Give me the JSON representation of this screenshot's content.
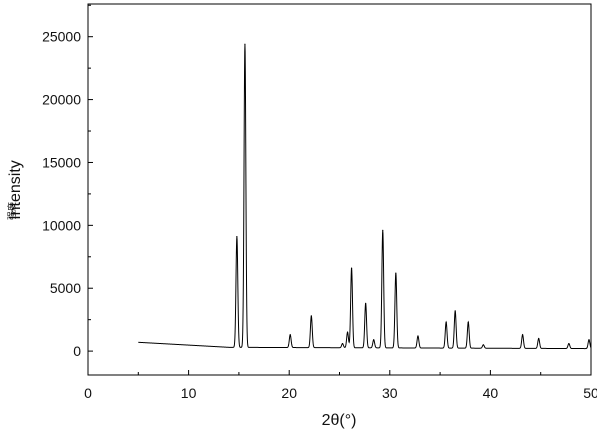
{
  "chart_data": {
    "type": "line",
    "title": "",
    "xlabel": "2θ(°)",
    "ylabel": "Intensity",
    "ylabel_secondary": "强度",
    "xlim": [
      0,
      50
    ],
    "ylim": [
      -1900,
      27600
    ],
    "x_ticks": [
      0,
      10,
      20,
      30,
      40,
      50
    ],
    "y_ticks": [
      0,
      5000,
      10000,
      15000,
      20000,
      25000
    ],
    "grid": false,
    "legend": "none",
    "baseline": {
      "start_x": 5,
      "start_y": 700,
      "decay_to_x": 14,
      "decay_to_y": 300,
      "end_y": 200
    },
    "peaks": [
      {
        "x": 14.8,
        "y": 9100
      },
      {
        "x": 15.6,
        "y": 24400
      },
      {
        "x": 20.1,
        "y": 1300
      },
      {
        "x": 22.2,
        "y": 2800
      },
      {
        "x": 25.3,
        "y": 600
      },
      {
        "x": 25.8,
        "y": 1500
      },
      {
        "x": 26.2,
        "y": 6600
      },
      {
        "x": 27.6,
        "y": 3800
      },
      {
        "x": 28.4,
        "y": 900
      },
      {
        "x": 29.3,
        "y": 9600
      },
      {
        "x": 30.6,
        "y": 6200
      },
      {
        "x": 32.8,
        "y": 1200
      },
      {
        "x": 35.6,
        "y": 2300
      },
      {
        "x": 36.5,
        "y": 3200
      },
      {
        "x": 37.8,
        "y": 2300
      },
      {
        "x": 39.3,
        "y": 500
      },
      {
        "x": 43.2,
        "y": 1300
      },
      {
        "x": 44.8,
        "y": 1000
      },
      {
        "x": 47.8,
        "y": 600
      },
      {
        "x": 49.8,
        "y": 900
      }
    ],
    "line_color": "#000000"
  }
}
